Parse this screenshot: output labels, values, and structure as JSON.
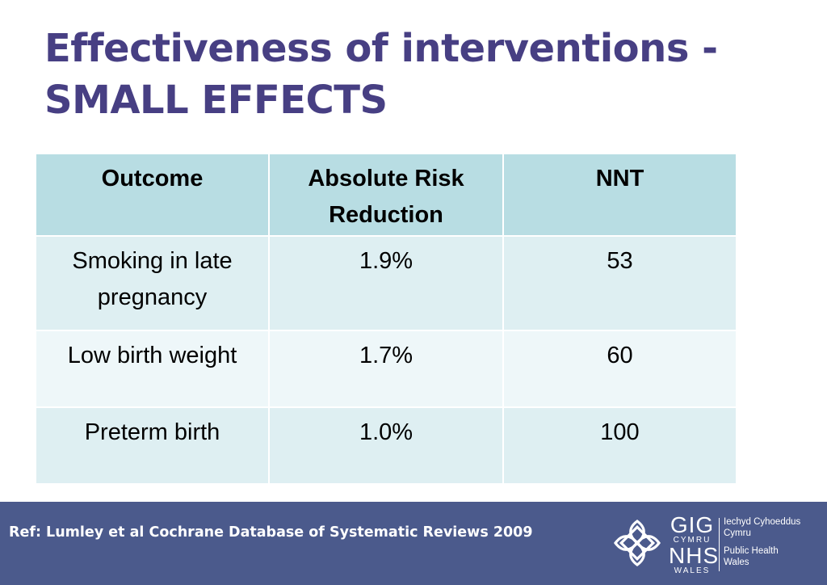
{
  "title": {
    "line1": "Effectiveness of interventions  -",
    "line2": "SMALL EFFECTS"
  },
  "table": {
    "headers": [
      "Outcome",
      "Absolute Risk Reduction",
      "NNT"
    ],
    "rows": [
      {
        "outcome": "Smoking in late pregnancy",
        "arr": "1.9%",
        "nnt": "53"
      },
      {
        "outcome": "Low birth weight",
        "arr": "1.7%",
        "nnt": "60"
      },
      {
        "outcome": "Preterm birth",
        "arr": "1.0%",
        "nnt": "100"
      }
    ]
  },
  "footer": {
    "reference": "Ref: Lumley et al Cochrane Database of Systematic Reviews 2009",
    "logo": {
      "gig": "GIG",
      "cymru": "CYMRU",
      "nhs": "NHS",
      "wales": "WALES",
      "welsh_name_line1": "Iechyd Cyhoeddus",
      "welsh_name_line2": "Cymru",
      "english_name_line1": "Public Health",
      "english_name_line2": "Wales"
    },
    "colors": {
      "footer_background": "#4b5a8c",
      "title_color": "#473f83",
      "header_fill": "#b8dde3",
      "row_fill": "#deeff2"
    }
  }
}
